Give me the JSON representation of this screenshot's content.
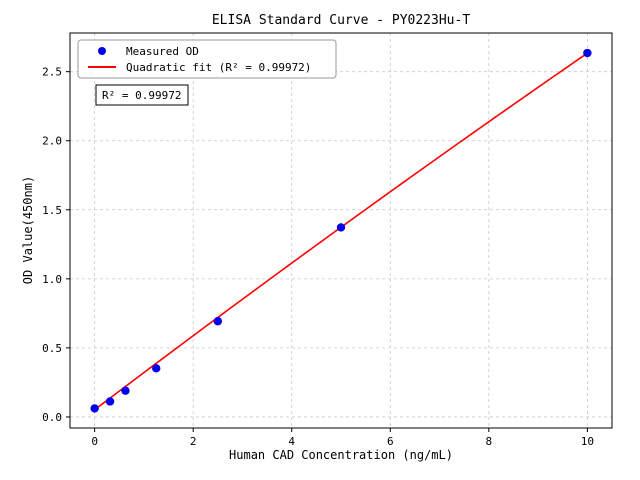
{
  "chart_data": {
    "type": "scatter",
    "title": "ELISA Standard Curve - PY0223Hu-T",
    "xlabel": "Human CAD Concentration (ng/mL)",
    "ylabel": "OD Value(450nm)",
    "xlim": [
      -0.5,
      10.5
    ],
    "ylim": [
      -0.08,
      2.78
    ],
    "x_ticks": [
      0,
      2,
      4,
      6,
      8,
      10
    ],
    "y_ticks": [
      0.0,
      0.5,
      1.0,
      1.5,
      2.0,
      2.5
    ],
    "grid": true,
    "colors": {
      "points": "#0000ee",
      "fit_line": "#ff0000",
      "grid": "#c8c8c8",
      "axis": "#000000"
    },
    "legend": {
      "position": "upper-left",
      "entries": [
        {
          "label": "Measured OD",
          "marker": "circle",
          "color": "#0000ee"
        },
        {
          "label": "Quadratic fit (R² = 0.99972)",
          "marker": "line",
          "color": "#ff0000"
        }
      ]
    },
    "annotation": "R² = 0.99972",
    "series": [
      {
        "name": "Measured OD",
        "type": "scatter",
        "color": "#0000ee",
        "x": [
          0,
          0.313,
          0.625,
          1.25,
          2.5,
          5.0,
          10.0
        ],
        "y": [
          0.062,
          0.112,
          0.19,
          0.352,
          0.693,
          1.372,
          2.635
        ]
      },
      {
        "name": "Quadratic fit",
        "type": "line",
        "color": "#ff0000",
        "quadratic": {
          "a": 0.052,
          "b": 0.2704,
          "c": -0.00122
        },
        "x_range": [
          0.0,
          10.0
        ],
        "r_squared": 0.99972
      }
    ]
  }
}
